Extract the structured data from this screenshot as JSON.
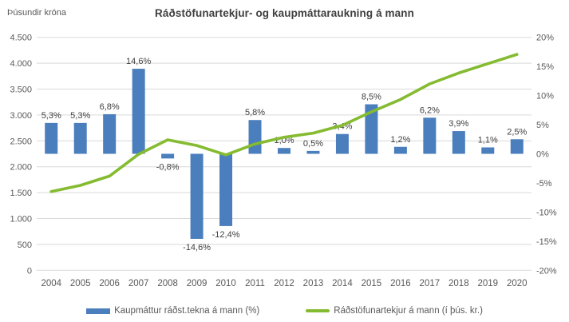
{
  "chart_data": {
    "type": "combo",
    "title": "Ráðstöfunartekjur- og kaupmáttaraukning á mann",
    "grid": true,
    "legend_position": "bottom",
    "categories": [
      "2004",
      "2005",
      "2006",
      "2007",
      "2008",
      "2009",
      "2010",
      "2011",
      "2012",
      "2013",
      "2014",
      "2015",
      "2016",
      "2017",
      "2018",
      "2019",
      "2020"
    ],
    "series": [
      {
        "name": "Kaupmáttur ráðst.tekna á mann (%)",
        "type": "bar",
        "axis": "right",
        "color": "#4A7EBD",
        "values": [
          5.3,
          5.3,
          6.8,
          14.6,
          -0.8,
          -14.6,
          -12.4,
          5.8,
          1.0,
          0.5,
          3.4,
          8.5,
          1.2,
          6.2,
          3.9,
          1.1,
          2.5
        ],
        "labels": [
          "5,3%",
          "5,3%",
          "6,8%",
          "14,6%",
          "-0,8%",
          "-14,6%",
          "-12,4%",
          "5,8%",
          "1,0%",
          "0,5%",
          "3,4%",
          "8,5%",
          "1,2%",
          "6,2%",
          "3,9%",
          "1,1%",
          "2,5%"
        ]
      },
      {
        "name": "Ráðstöfunartekjur á mann (í þús. kr.)",
        "type": "line",
        "axis": "left",
        "color": "#85BB30",
        "values": [
          1520,
          1640,
          1820,
          2240,
          2520,
          2410,
          2230,
          2440,
          2570,
          2650,
          2800,
          3060,
          3300,
          3600,
          3810,
          3990,
          4170
        ]
      }
    ],
    "left_axis": {
      "title": "Þúsundir króna",
      "min": 0,
      "max": 4500,
      "step": 500,
      "tick_labels": [
        "4.500",
        "4.000",
        "3.500",
        "3.000",
        "2.500",
        "2.000",
        "1.500",
        "1.000",
        "500",
        "0"
      ]
    },
    "right_axis": {
      "min": -20,
      "max": 20,
      "step": 5,
      "tick_labels": [
        "20%",
        "15%",
        "10%",
        "5%",
        "0%",
        "-5%",
        "-10%",
        "-15%",
        "-20%"
      ]
    },
    "colors": {
      "gridline": "#D9D9D9",
      "axis_text": "#595959",
      "data_label_text": "#404040",
      "title_text": "#3F3F3F"
    }
  }
}
